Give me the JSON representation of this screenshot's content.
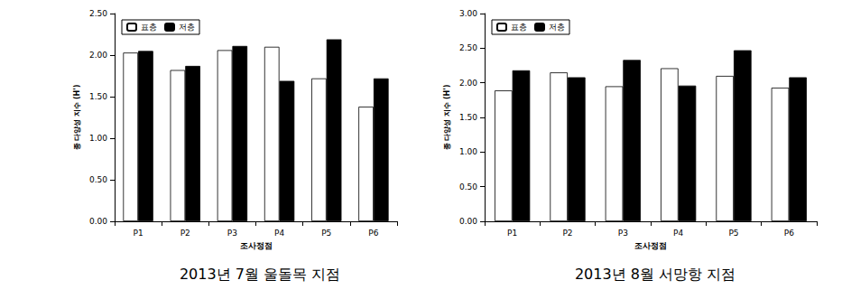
{
  "chart_data": [
    {
      "type": "bar",
      "title": "2013년 7월 울돌목 지점",
      "x_label": "조사정점",
      "y_label": "종 다양성 지수 (H')",
      "categories": [
        "P1",
        "P2",
        "P3",
        "P4",
        "P5",
        "P6"
      ],
      "series": [
        {
          "name": "표층",
          "color": "#ffffff",
          "values": [
            2.03,
            1.82,
            2.06,
            2.1,
            1.72,
            1.38
          ]
        },
        {
          "name": "저층",
          "color": "#000000",
          "values": [
            2.05,
            1.87,
            2.11,
            1.69,
            2.19,
            1.72
          ]
        }
      ],
      "ylim": [
        0,
        2.5
      ],
      "yticks": [
        {
          "value": 0,
          "label": "0.00"
        },
        {
          "value": 0.5,
          "label": "0.50"
        },
        {
          "value": 1,
          "label": "1.00"
        },
        {
          "value": 1.5,
          "label": "1.50"
        },
        {
          "value": 2,
          "label": "2.00"
        },
        {
          "value": 2.5,
          "label": "2.50"
        }
      ],
      "legend": "upper left"
    },
    {
      "type": "bar",
      "title": "2013년 8월 서망항 지점",
      "x_label": "조사정점",
      "y_label": "종 다양성 지수 (H')",
      "categories": [
        "P1",
        "P2",
        "P3",
        "P4",
        "P5",
        "P6"
      ],
      "series": [
        {
          "name": "표층",
          "color": "#ffffff",
          "values": [
            1.89,
            2.15,
            1.95,
            2.21,
            2.1,
            1.93
          ]
        },
        {
          "name": "저층",
          "color": "#000000",
          "values": [
            2.18,
            2.08,
            2.33,
            1.96,
            2.47,
            2.08
          ]
        }
      ],
      "ylim": [
        0,
        3
      ],
      "yticks": [
        {
          "value": 0,
          "label": "0.00"
        },
        {
          "value": 0.5,
          "label": "0.50"
        },
        {
          "value": 1,
          "label": "1.00"
        },
        {
          "value": 1.5,
          "label": "1.50"
        },
        {
          "value": 2,
          "label": "2.00"
        },
        {
          "value": 2.5,
          "label": "2.50"
        },
        {
          "value": 3,
          "label": "3.00"
        }
      ],
      "legend": "upper left"
    }
  ]
}
